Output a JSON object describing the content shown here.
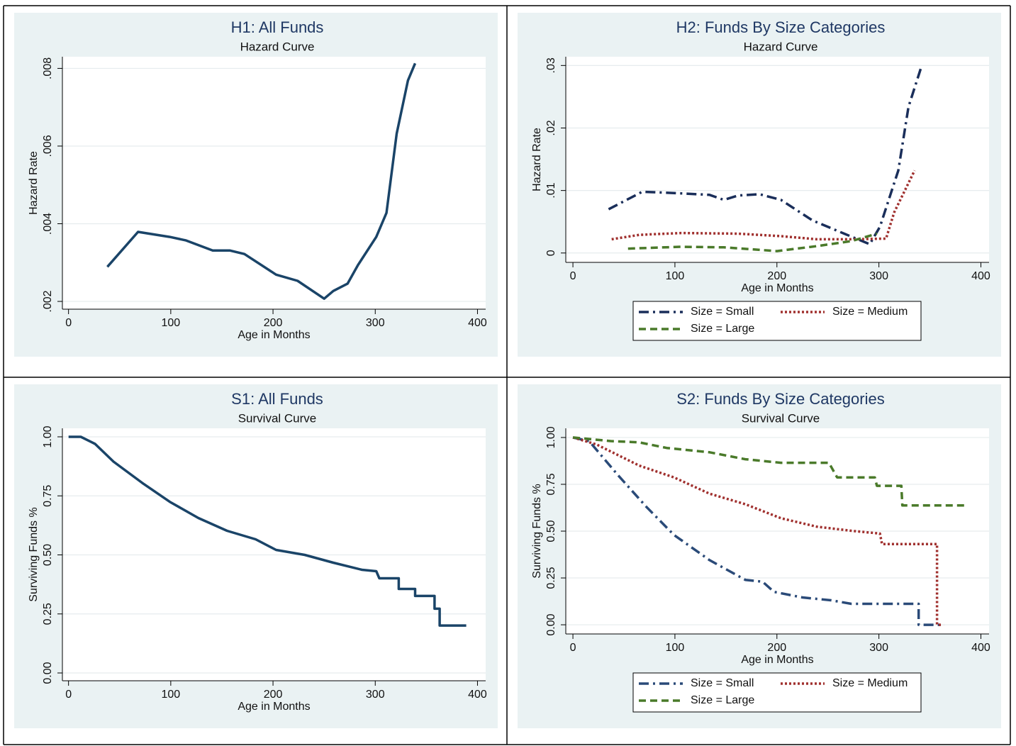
{
  "chart_data": [
    {
      "type": "line",
      "title": "H1: All Funds",
      "subtitle": "Hazard Curve",
      "x_label": "Age in Months",
      "y_label": "Hazard Rate",
      "x": [
        38,
        68,
        99,
        115,
        141,
        158,
        172,
        203,
        224,
        250,
        259,
        273,
        283,
        301,
        311,
        321,
        332,
        339
      ],
      "values": [
        0.00289,
        0.00379,
        0.00366,
        0.00357,
        0.00331,
        0.00331,
        0.00322,
        0.00269,
        0.00253,
        0.00207,
        0.00227,
        0.00246,
        0.00293,
        0.00366,
        0.00428,
        0.00632,
        0.00769,
        0.00813
      ],
      "color": "#1a4468",
      "linestyle": "solid",
      "xlim": [
        -6,
        408
      ],
      "xticks": [
        0,
        100,
        200,
        300,
        400
      ],
      "ylim": [
        0.0018,
        0.0083
      ],
      "yticks": [
        {
          "value": 0.002,
          "label": ".002"
        },
        {
          "value": 0.004,
          "label": ".004"
        },
        {
          "value": 0.006,
          "label": ".006"
        },
        {
          "value": 0.008,
          "label": ".008"
        }
      ],
      "grid": true
    },
    {
      "type": "line",
      "title": "H2: Funds By Size Categories",
      "subtitle": "Hazard Curve",
      "x_label": "Age in Months",
      "y_label": "Hazard Rate",
      "series": [
        {
          "name": "Size = Small",
          "color": "#1a2e5a",
          "linestyle": "dashdot",
          "x": [
            35,
            68,
            99,
            134,
            148,
            162,
            183,
            204,
            235,
            266,
            291,
            301,
            319,
            329,
            342
          ],
          "values": [
            0.007,
            0.0098,
            0.0096,
            0.0093,
            0.0085,
            0.0092,
            0.0094,
            0.0085,
            0.0052,
            0.0031,
            0.0014,
            0.0042,
            0.0132,
            0.0234,
            0.03
          ]
        },
        {
          "name": "Size = Medium",
          "color": "#a0302e",
          "linestyle": "dot",
          "x": [
            38,
            65,
            106,
            162,
            204,
            239,
            273,
            307,
            315,
            335
          ],
          "values": [
            0.0022,
            0.0029,
            0.0032,
            0.0031,
            0.0027,
            0.0022,
            0.0022,
            0.0023,
            0.0065,
            0.0132
          ]
        },
        {
          "name": "Size = Large",
          "color": "#4a7a2a",
          "linestyle": "dash",
          "x": [
            54,
            106,
            148,
            200,
            239,
            273,
            298
          ],
          "values": [
            0.0007,
            0.001,
            0.0009,
            0.0003,
            0.0011,
            0.0019,
            0.0031
          ]
        }
      ],
      "xlim": [
        -7,
        408
      ],
      "xticks": [
        0,
        100,
        200,
        300,
        400
      ],
      "ylim": [
        -0.0015,
        0.0314
      ],
      "yticks": [
        0,
        {
          "value": 0.01,
          "label": ".01"
        },
        {
          "value": 0.02,
          "label": ".02"
        },
        {
          "value": 0.03,
          "label": ".03"
        }
      ],
      "grid": true,
      "legend": "bottom"
    },
    {
      "type": "line",
      "title": "S1: All Funds",
      "subtitle": "Survival Curve",
      "x_label": "Age in Months",
      "y_label": "Surviving Funds %",
      "x": [
        0,
        12,
        26,
        44,
        72,
        99,
        127,
        155,
        183,
        203,
        231,
        259,
        287,
        301,
        304,
        323,
        323,
        339,
        339,
        358,
        358,
        363,
        363,
        389
      ],
      "values": [
        1.0,
        1.0,
        0.97,
        0.895,
        0.805,
        0.725,
        0.656,
        0.602,
        0.566,
        0.521,
        0.5,
        0.467,
        0.437,
        0.431,
        0.401,
        0.401,
        0.356,
        0.356,
        0.326,
        0.326,
        0.272,
        0.272,
        0.201,
        0.201
      ],
      "color": "#1a4468",
      "linestyle": "solid",
      "xlim": [
        -6,
        408
      ],
      "xticks": [
        0,
        100,
        200,
        300,
        400
      ],
      "ylim": [
        -0.033,
        1.036
      ],
      "yticks": [
        {
          "value": 0,
          "label": "0.00"
        },
        {
          "value": 0.25,
          "label": "0.25"
        },
        {
          "value": 0.5,
          "label": "0.50"
        },
        {
          "value": 0.75,
          "label": "0.75"
        },
        {
          "value": 1,
          "label": "1.00"
        }
      ],
      "grid": true
    },
    {
      "type": "line",
      "title": "S2: Funds By Size Categories",
      "subtitle": "Survival Curve",
      "x_label": "Age in Months",
      "y_label": "Surviving Funds %",
      "series": [
        {
          "name": "Size = Small",
          "color": "#2a4a78",
          "linestyle": "dashdot",
          "x": [
            0,
            16,
            44,
            72,
            99,
            134,
            169,
            186,
            197,
            225,
            253,
            273,
            339,
            339,
            364
          ],
          "values": [
            1.0,
            0.98,
            0.8,
            0.63,
            0.48,
            0.345,
            0.24,
            0.23,
            0.176,
            0.146,
            0.131,
            0.112,
            0.112,
            0,
            0
          ]
        },
        {
          "name": "Size = Medium",
          "color": "#a0302e",
          "linestyle": "dot",
          "x": [
            0,
            23,
            65,
            99,
            134,
            169,
            204,
            239,
            273,
            301,
            303,
            357,
            357,
            362
          ],
          "values": [
            1.0,
            0.963,
            0.85,
            0.787,
            0.7,
            0.644,
            0.569,
            0.524,
            0.502,
            0.487,
            0.431,
            0.431,
            0,
            0
          ]
        },
        {
          "name": "Size = Large",
          "color": "#4a7a2a",
          "linestyle": "dash",
          "x": [
            0,
            37,
            65,
            92,
            134,
            169,
            204,
            251,
            259,
            296,
            298,
            322,
            323,
            386
          ],
          "values": [
            1.0,
            0.981,
            0.974,
            0.944,
            0.921,
            0.884,
            0.865,
            0.865,
            0.787,
            0.787,
            0.742,
            0.742,
            0.637,
            0.637
          ]
        }
      ],
      "xlim": [
        -7,
        408
      ],
      "xticks": [
        0,
        100,
        200,
        300,
        400
      ],
      "ylim": [
        -0.049,
        1.049
      ],
      "yticks": [
        {
          "value": 0,
          "label": "0.00"
        },
        {
          "value": 0.25,
          "label": "0.25"
        },
        {
          "value": 0.5,
          "label": "0.50"
        },
        {
          "value": 0.75,
          "label": "0.75"
        },
        {
          "value": 1,
          "label": "1.00"
        }
      ],
      "grid": true,
      "legend": "bottom"
    }
  ]
}
